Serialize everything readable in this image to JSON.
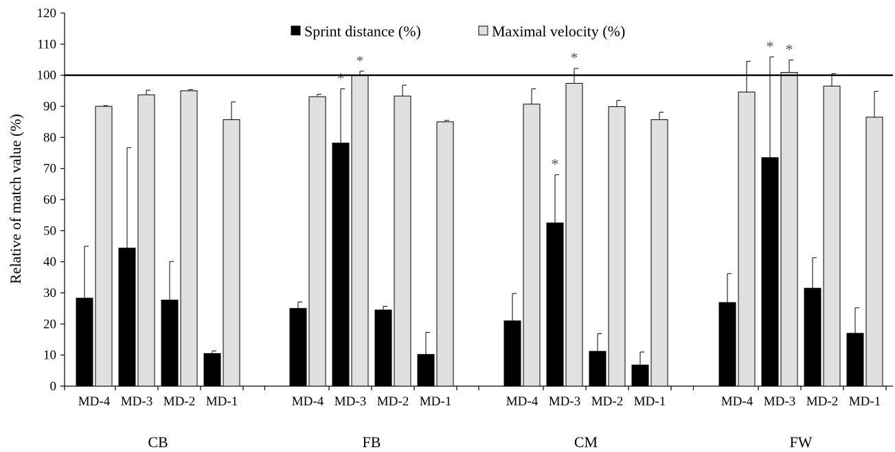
{
  "chart_data": {
    "type": "bar",
    "title": "",
    "xlabel": "",
    "ylabel": "Relative of match value (%)",
    "ylim": [
      0,
      120
    ],
    "yticks": [
      0,
      10,
      20,
      30,
      40,
      50,
      60,
      70,
      80,
      90,
      100,
      110,
      120
    ],
    "reference_line": 100,
    "legend_position": "top-center",
    "groups": [
      "CB",
      "FB",
      "CM",
      "FW"
    ],
    "categories": [
      "MD-4",
      "MD-3",
      "MD-2",
      "MD-1"
    ],
    "series": [
      {
        "name": "Sprint distance (%)",
        "color": "#000000",
        "values": {
          "CB": [
            28.3,
            44.4,
            27.7,
            10.5
          ],
          "FB": [
            25.0,
            78.2,
            24.5,
            10.2
          ],
          "CM": [
            21.0,
            52.5,
            11.2,
            6.8
          ],
          "FW": [
            26.9,
            73.5,
            31.5,
            17.0
          ]
        },
        "errors": {
          "CB": [
            16.7,
            32.3,
            12.4,
            0.8
          ],
          "FB": [
            2.1,
            17.4,
            1.2,
            7.1
          ],
          "CM": [
            8.8,
            15.5,
            5.7,
            4.2
          ],
          "FW": [
            9.3,
            32.4,
            9.8,
            8.2
          ]
        },
        "significant": {
          "CB": [
            false,
            false,
            false,
            false
          ],
          "FB": [
            false,
            true,
            false,
            false
          ],
          "CM": [
            false,
            true,
            false,
            false
          ],
          "FW": [
            false,
            true,
            false,
            false
          ]
        }
      },
      {
        "name": "Maximal velocity (%)",
        "color": "#e0e0e0",
        "values": {
          "CB": [
            90.0,
            93.7,
            95.0,
            85.7
          ],
          "FB": [
            93.1,
            100.0,
            93.3,
            85.0
          ],
          "CM": [
            90.7,
            97.4,
            89.9,
            85.7
          ],
          "FW": [
            94.6,
            100.9,
            96.5,
            86.5
          ]
        },
        "errors": {
          "CB": [
            0.2,
            1.5,
            0.4,
            5.7
          ],
          "FB": [
            0.8,
            1.3,
            3.5,
            0.5
          ],
          "CM": [
            4.9,
            4.8,
            2.0,
            2.4
          ],
          "FW": [
            9.9,
            4.0,
            4.0,
            8.3
          ]
        },
        "significant": {
          "CB": [
            false,
            false,
            false,
            false
          ],
          "FB": [
            false,
            true,
            false,
            false
          ],
          "CM": [
            false,
            true,
            false,
            false
          ],
          "FW": [
            false,
            true,
            false,
            false
          ]
        }
      }
    ],
    "significance_marker": "*"
  }
}
